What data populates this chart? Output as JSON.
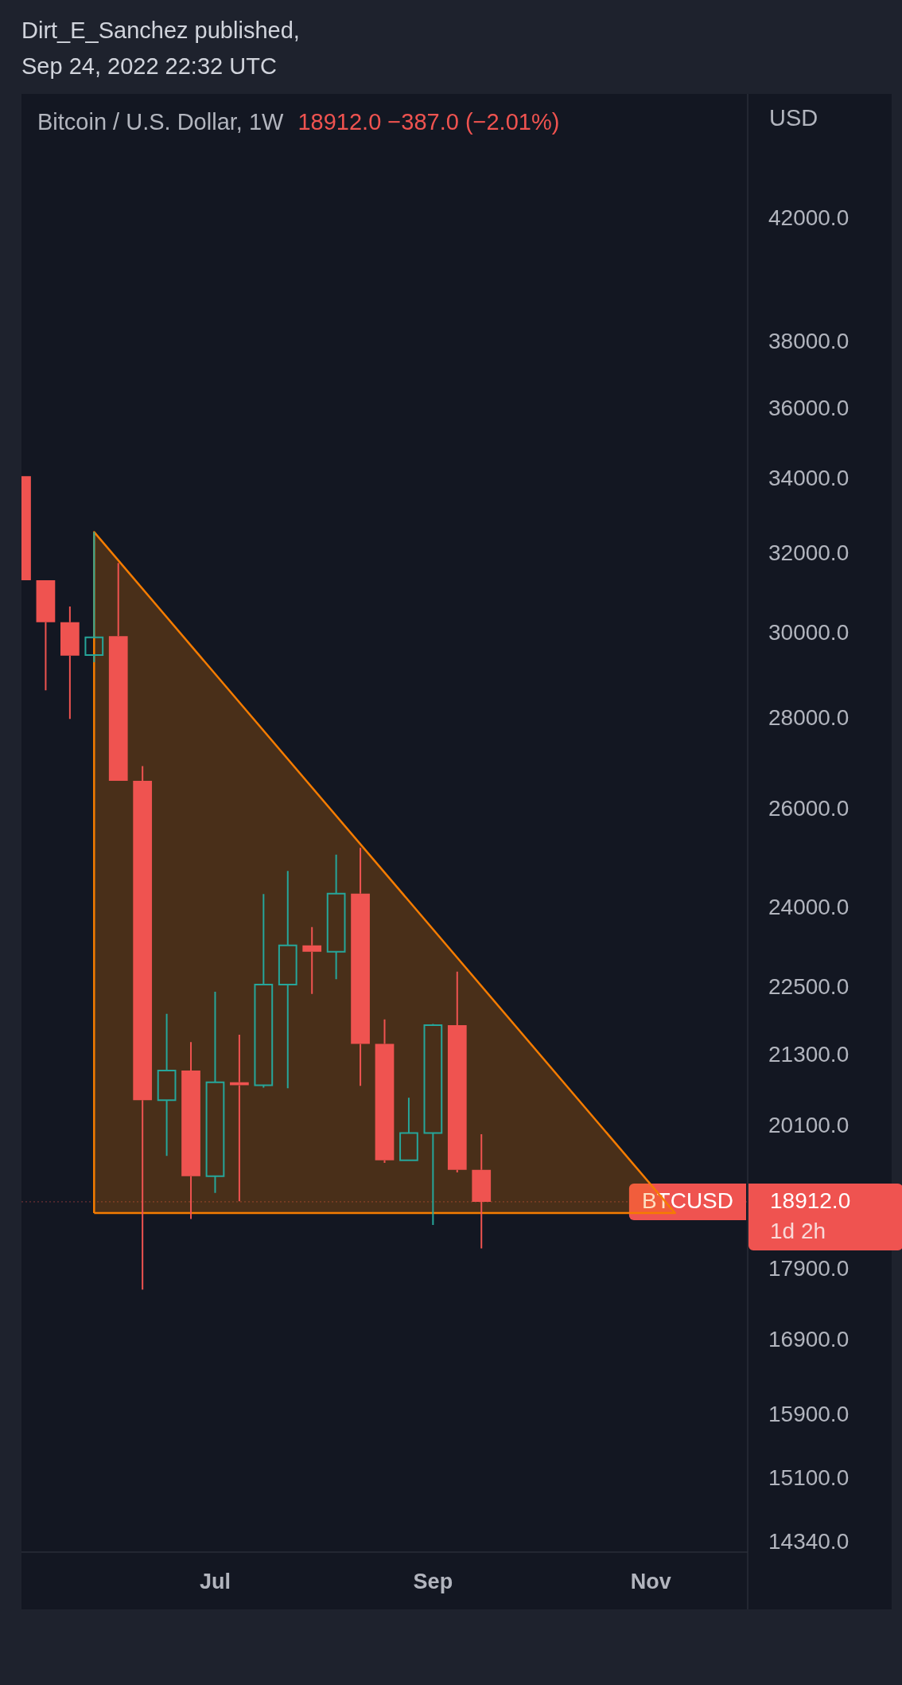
{
  "chart_data": {
    "type": "candlestick",
    "title": "Bitcoin / U.S. Dollar, 1W",
    "ylabel": "USD",
    "annotations": [
      "Dirt_E_Sanchez published,",
      "Sep 24, 2022 22:32 UTC",
      "18912.0 −387.0 (−2.01%)",
      "18912.0",
      "1d 2h"
    ],
    "x": [
      "2022-05-09",
      "2022-05-16",
      "2022-05-23",
      "2022-05-30",
      "2022-06-06",
      "2022-06-13",
      "2022-06-20",
      "2022-06-27",
      "2022-07-04",
      "2022-07-11",
      "2022-07-18",
      "2022-07-25",
      "2022-08-01",
      "2022-08-08",
      "2022-08-15",
      "2022-08-22",
      "2022-08-29",
      "2022-09-05",
      "2022-09-12",
      "2022-09-19"
    ],
    "ohlc": [
      [
        34090,
        34090,
        31330,
        31330
      ],
      [
        31330,
        31330,
        28650,
        30280
      ],
      [
        30280,
        30670,
        27990,
        29470
      ],
      [
        29480,
        32580,
        29310,
        29910
      ],
      [
        29940,
        31770,
        26620,
        26620
      ],
      [
        26620,
        26940,
        17610,
        20540
      ],
      [
        20540,
        22030,
        19630,
        21040
      ],
      [
        21040,
        21530,
        18650,
        19310
      ],
      [
        19310,
        22430,
        19050,
        20840
      ],
      [
        20840,
        21660,
        18920,
        20790
      ],
      [
        20790,
        24280,
        20750,
        22560
      ],
      [
        22560,
        24740,
        20740,
        23290
      ],
      [
        23290,
        23640,
        22390,
        23170
      ],
      [
        23170,
        25070,
        22660,
        24290
      ],
      [
        24290,
        25210,
        20780,
        21500
      ],
      [
        21500,
        21930,
        19520,
        19560
      ],
      [
        19560,
        20580,
        19560,
        20000
      ],
      [
        20000,
        21850,
        18560,
        21830
      ],
      [
        21830,
        22800,
        19370,
        19410
      ],
      [
        19410,
        19980,
        18210,
        18912
      ]
    ],
    "colors": [
      "#ef5350",
      "#ef5350",
      "#ef5350",
      "#26a69a",
      "#ef5350",
      "#ef5350",
      "#26a69a",
      "#ef5350",
      "#26a69a",
      "#ef5350",
      "#26a69a",
      "#26a69a",
      "#ef5350",
      "#26a69a",
      "#ef5350",
      "#ef5350",
      "#26a69a",
      "#26a69a",
      "#ef5350",
      "#ef5350"
    ],
    "series": [
      {
        "type": "area",
        "x": [
          "2022-05-30",
          "2022-05-30",
          "2022-11-14",
          "2022-05-30"
        ],
        "values": [
          18740,
          32580,
          18740,
          18740
        ],
        "color": "#f57c00"
      }
    ],
    "ref_lines": [
      {
        "axis": "y",
        "value": 18912,
        "label": "BTCUSD",
        "color": "#ef5350"
      }
    ],
    "log": true,
    "grid": false,
    "legend": false,
    "ylim": [
      14230,
      46500
    ],
    "yticks": [
      {
        "value": 14340,
        "label": "14340.0"
      },
      {
        "value": 15100,
        "label": "15100.0"
      },
      {
        "value": 15900,
        "label": "15900.0"
      },
      {
        "value": 16900,
        "label": "16900.0"
      },
      {
        "value": 17900,
        "label": "17900.0"
      },
      {
        "value": 20100,
        "label": "20100.0"
      },
      {
        "value": 21300,
        "label": "21300.0"
      },
      {
        "value": 22500,
        "label": "22500.0"
      },
      {
        "value": 24000,
        "label": "24000.0"
      },
      {
        "value": 26000,
        "label": "26000.0"
      },
      {
        "value": 28000,
        "label": "28000.0"
      },
      {
        "value": 30000,
        "label": "30000.0"
      },
      {
        "value": 32000,
        "label": "32000.0"
      },
      {
        "value": 34000,
        "label": "34000.0"
      },
      {
        "value": 36000,
        "label": "36000.0"
      },
      {
        "value": 38000,
        "label": "38000.0"
      },
      {
        "value": 42000,
        "label": "42000.0"
      }
    ],
    "xlim": [
      "2022-05-09",
      "2022-12-05"
    ],
    "xticks": [
      {
        "value": "2022-07-04",
        "label": "Jul"
      },
      {
        "value": "2022-09-05",
        "label": "Sep"
      },
      {
        "value": "2022-11-07",
        "label": "Nov"
      }
    ]
  }
}
